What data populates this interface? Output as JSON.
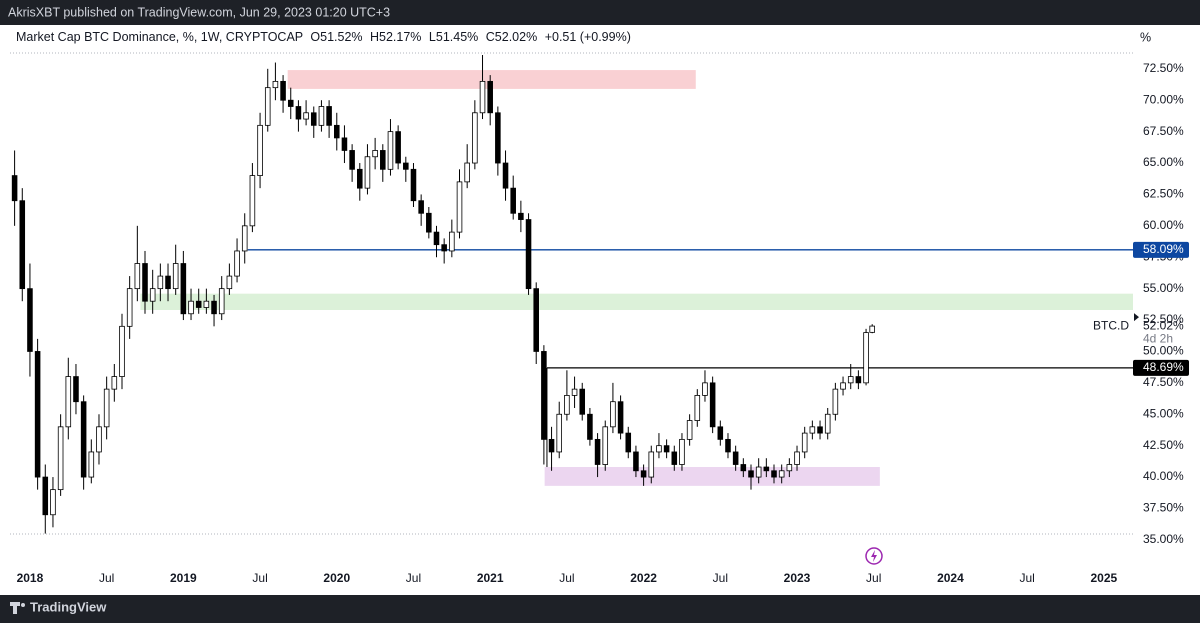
{
  "publisher": "AkrisXBT published on TradingView.com, Jun 29, 2023 01:20 UTC+3",
  "footer_brand": "TradingView",
  "chart_data": {
    "type": "candlestick",
    "title": "Market Cap BTC Dominance, %, 1W, CRYPTOCAP",
    "ohlc_legend": [
      "O51.52%",
      "H52.17%",
      "L51.45%",
      "C52.02%",
      "+0.51 (+0.99%)"
    ],
    "unit_label": "%",
    "symbol": "BTC.D",
    "countdown": "4d 2h",
    "up_color": "#ffffff",
    "down_color": "#000000",
    "border_color": "#000000",
    "x": [
      2017.9,
      2017.95,
      2018.0,
      2018.05,
      2018.1,
      2018.15,
      2018.2,
      2018.25,
      2018.3,
      2018.35,
      2018.4,
      2018.45,
      2018.5,
      2018.55,
      2018.6,
      2018.65,
      2018.7,
      2018.75,
      2018.8,
      2018.85,
      2018.9,
      2018.95,
      2019.0,
      2019.05,
      2019.1,
      2019.15,
      2019.2,
      2019.25,
      2019.3,
      2019.35,
      2019.4,
      2019.45,
      2019.5,
      2019.55,
      2019.6,
      2019.65,
      2019.7,
      2019.75,
      2019.8,
      2019.85,
      2019.9,
      2019.95,
      2020.0,
      2020.05,
      2020.1,
      2020.15,
      2020.2,
      2020.25,
      2020.3,
      2020.35,
      2020.4,
      2020.45,
      2020.5,
      2020.55,
      2020.6,
      2020.65,
      2020.7,
      2020.75,
      2020.8,
      2020.85,
      2020.9,
      2020.95,
      2021.0,
      2021.05,
      2021.1,
      2021.15,
      2021.2,
      2021.25,
      2021.3,
      2021.35,
      2021.4,
      2021.45,
      2021.5,
      2021.55,
      2021.6,
      2021.65,
      2021.7,
      2021.75,
      2021.8,
      2021.85,
      2021.9,
      2021.95,
      2022.0,
      2022.05,
      2022.1,
      2022.15,
      2022.2,
      2022.25,
      2022.3,
      2022.35,
      2022.4,
      2022.45,
      2022.5,
      2022.55,
      2022.6,
      2022.65,
      2022.7,
      2022.75,
      2022.8,
      2022.85,
      2022.9,
      2022.95,
      2023.0,
      2023.05,
      2023.1,
      2023.15,
      2023.2,
      2023.25,
      2023.3,
      2023.35,
      2023.4,
      2023.45,
      2023.49
    ],
    "ohlc": [
      [
        64,
        66,
        60,
        62
      ],
      [
        62,
        63,
        54,
        55
      ],
      [
        55,
        57,
        48,
        50
      ],
      [
        50,
        51,
        39,
        40
      ],
      [
        40,
        41,
        35.5,
        37
      ],
      [
        37,
        40,
        36,
        39
      ],
      [
        39,
        45,
        38.5,
        44
      ],
      [
        44,
        49.5,
        43,
        48
      ],
      [
        48,
        49,
        45,
        46
      ],
      [
        46,
        46.5,
        39,
        40
      ],
      [
        40,
        43,
        39.5,
        42
      ],
      [
        42,
        45,
        41,
        44
      ],
      [
        44,
        48,
        43,
        47
      ],
      [
        47,
        49,
        46,
        48
      ],
      [
        48,
        53,
        47,
        52
      ],
      [
        52,
        56,
        51,
        55
      ],
      [
        55,
        60,
        54,
        57
      ],
      [
        57,
        58,
        53,
        54
      ],
      [
        54,
        56.5,
        53,
        55
      ],
      [
        55,
        57,
        54,
        56
      ],
      [
        56,
        57,
        54,
        55
      ],
      [
        55,
        58.5,
        54.5,
        57
      ],
      [
        57,
        58,
        52.5,
        53
      ],
      [
        53,
        55,
        52.5,
        54
      ],
      [
        54,
        55,
        53,
        53.5
      ],
      [
        53.5,
        55,
        53,
        54
      ],
      [
        54,
        54.5,
        52,
        53
      ],
      [
        53,
        56,
        52.5,
        55
      ],
      [
        55,
        57,
        54.5,
        56
      ],
      [
        56,
        59,
        55.5,
        58
      ],
      [
        58,
        61,
        57,
        60
      ],
      [
        60,
        65,
        59.5,
        64
      ],
      [
        64,
        69,
        63,
        68
      ],
      [
        68,
        72.5,
        67.5,
        71
      ],
      [
        71,
        73,
        70,
        71.5
      ],
      [
        71.5,
        72,
        69,
        70
      ],
      [
        70,
        71,
        68.5,
        69.5
      ],
      [
        69.5,
        70,
        67.5,
        68.5
      ],
      [
        68.5,
        70,
        68,
        69
      ],
      [
        69,
        69.5,
        67,
        68
      ],
      [
        68,
        70,
        67.5,
        69.5
      ],
      [
        69.5,
        70,
        67,
        68
      ],
      [
        68,
        69,
        66,
        67
      ],
      [
        67,
        68,
        65,
        66
      ],
      [
        66,
        66.5,
        63.5,
        64.5
      ],
      [
        64.5,
        65,
        62,
        63
      ],
      [
        63,
        66.5,
        62.5,
        65.5
      ],
      [
        65.5,
        67,
        64.5,
        66
      ],
      [
        66,
        66.5,
        63.5,
        64.5
      ],
      [
        64.5,
        68.5,
        64,
        67.5
      ],
      [
        67.5,
        68,
        64.5,
        65
      ],
      [
        65,
        65.5,
        63.5,
        64.5
      ],
      [
        64.5,
        65,
        61.5,
        62
      ],
      [
        62,
        62.5,
        60,
        61
      ],
      [
        61,
        61.5,
        59,
        59.5
      ],
      [
        59.5,
        60,
        57.5,
        58.5
      ],
      [
        58.5,
        59,
        57,
        58
      ],
      [
        58,
        60.5,
        57.5,
        59.5
      ],
      [
        59.5,
        64.5,
        59,
        63.5
      ],
      [
        63.5,
        66.5,
        63,
        65
      ],
      [
        65,
        70,
        64.5,
        69
      ],
      [
        69,
        73.6,
        68.5,
        71.5
      ],
      [
        71.5,
        72,
        68,
        69
      ],
      [
        69,
        69.5,
        64,
        65
      ],
      [
        65,
        66,
        62,
        63
      ],
      [
        63,
        64,
        60.5,
        61
      ],
      [
        61,
        62,
        59.5,
        60.5
      ],
      [
        60.5,
        61,
        54.5,
        55
      ],
      [
        55,
        55.5,
        49,
        50
      ],
      [
        50,
        50.5,
        41,
        43
      ],
      [
        43,
        44,
        40.5,
        42
      ],
      [
        42,
        46,
        41.5,
        45
      ],
      [
        45,
        48.5,
        44.5,
        46.5
      ],
      [
        46.5,
        48,
        45.5,
        47
      ],
      [
        47,
        47.5,
        44.5,
        45
      ],
      [
        45,
        45.5,
        42.5,
        43
      ],
      [
        43,
        43.5,
        40,
        41
      ],
      [
        41,
        44.5,
        40.5,
        44
      ],
      [
        44,
        47.5,
        43.5,
        46
      ],
      [
        46,
        46.5,
        43,
        43.5
      ],
      [
        43.5,
        44,
        41.5,
        42
      ],
      [
        42,
        42.5,
        40,
        40.5
      ],
      [
        40.5,
        41,
        39.3,
        40
      ],
      [
        40,
        42.5,
        39.5,
        42
      ],
      [
        42,
        43.5,
        41.5,
        42.5
      ],
      [
        42.5,
        43,
        41.5,
        42
      ],
      [
        42,
        42.5,
        40.5,
        41
      ],
      [
        41,
        43.5,
        40.5,
        43
      ],
      [
        43,
        45,
        42.5,
        44.5
      ],
      [
        44.5,
        47,
        44,
        46.5
      ],
      [
        46.5,
        48.5,
        46,
        47.5
      ],
      [
        47.5,
        48,
        43.5,
        44
      ],
      [
        44,
        44.5,
        42.5,
        43
      ],
      [
        43,
        43.5,
        41.5,
        42
      ],
      [
        42,
        42.5,
        40.5,
        41
      ],
      [
        41,
        41.5,
        40,
        40.5
      ],
      [
        40.5,
        41,
        39,
        40
      ],
      [
        40,
        41.5,
        39.5,
        40.8
      ],
      [
        40.8,
        41.5,
        40,
        40.5
      ],
      [
        40.5,
        41,
        39.5,
        40
      ],
      [
        40,
        41,
        39.5,
        40.5
      ],
      [
        40.5,
        41.5,
        40,
        41
      ],
      [
        41,
        42.5,
        40.5,
        42
      ],
      [
        42,
        44,
        41.5,
        43.5
      ],
      [
        43.5,
        44.5,
        43,
        44
      ],
      [
        44,
        44.5,
        43,
        43.5
      ],
      [
        43.5,
        45.5,
        43,
        45
      ],
      [
        45,
        47.5,
        44.5,
        47
      ],
      [
        47,
        48,
        46.5,
        47.5
      ],
      [
        47.5,
        49,
        47,
        48
      ],
      [
        48,
        48.5,
        47,
        47.5
      ],
      [
        47.5,
        51.8,
        47.3,
        51.5
      ],
      [
        51.52,
        52.17,
        51.45,
        52.02
      ]
    ],
    "last_price": {
      "value": 52.02,
      "label": "52.02%"
    },
    "lines": [
      {
        "value": 58.09,
        "label": "58.09%",
        "color": "#0d47a1",
        "x_start": 2019.42
      },
      {
        "value": 48.69,
        "label": "48.69%",
        "color": "#000000",
        "x_start": 2021.37
      }
    ],
    "zones": [
      {
        "x": [
          2019.68,
          2022.34
        ],
        "y": [
          70.9,
          72.4
        ],
        "color": "#f9d0d3"
      },
      {
        "x": [
          2018.72,
          2025.19
        ],
        "y": [
          53.3,
          54.6
        ],
        "color": "#dcf1d9"
      },
      {
        "x": [
          2021.355,
          2023.54
        ],
        "y": [
          39.3,
          40.8
        ],
        "color": "#ecd6f0"
      }
    ],
    "xlim": [
      2017.87,
      2025.19
    ],
    "ylim": [
      33.0,
      73.6
    ],
    "xticks": [
      2018,
      {
        "value": 2018.5,
        "label": "Jul"
      },
      2019,
      {
        "value": 2019.5,
        "label": "Jul"
      },
      2020,
      {
        "value": 2020.5,
        "label": "Jul"
      },
      2021,
      {
        "value": 2021.5,
        "label": "Jul"
      },
      2022,
      {
        "value": 2022.5,
        "label": "Jul"
      },
      2023,
      {
        "value": 2023.5,
        "label": "Jul"
      },
      2024,
      {
        "value": 2024.5,
        "label": "Jul"
      },
      2025
    ],
    "yticks": [
      {
        "value": 35,
        "label": "35.00%"
      },
      {
        "value": 37.5,
        "label": "37.50%"
      },
      {
        "value": 40,
        "label": "40.00%"
      },
      {
        "value": 42.5,
        "label": "42.50%"
      },
      {
        "value": 45,
        "label": "45.00%"
      },
      {
        "value": 47.5,
        "label": "47.50%"
      },
      {
        "value": 50,
        "label": "50.00%"
      },
      {
        "value": 52.5,
        "label": "52.50%"
      },
      {
        "value": 55,
        "label": "55.00%"
      },
      {
        "value": 57.5,
        "label": "57.50%"
      },
      {
        "value": 60,
        "label": "60.00%"
      },
      {
        "value": 62.5,
        "label": "62.50%"
      },
      {
        "value": 65,
        "label": "65.00%"
      },
      {
        "value": 67.5,
        "label": "67.50%"
      },
      {
        "value": 70,
        "label": "70.00%"
      },
      {
        "value": 72.5,
        "label": "72.50%"
      }
    ]
  }
}
